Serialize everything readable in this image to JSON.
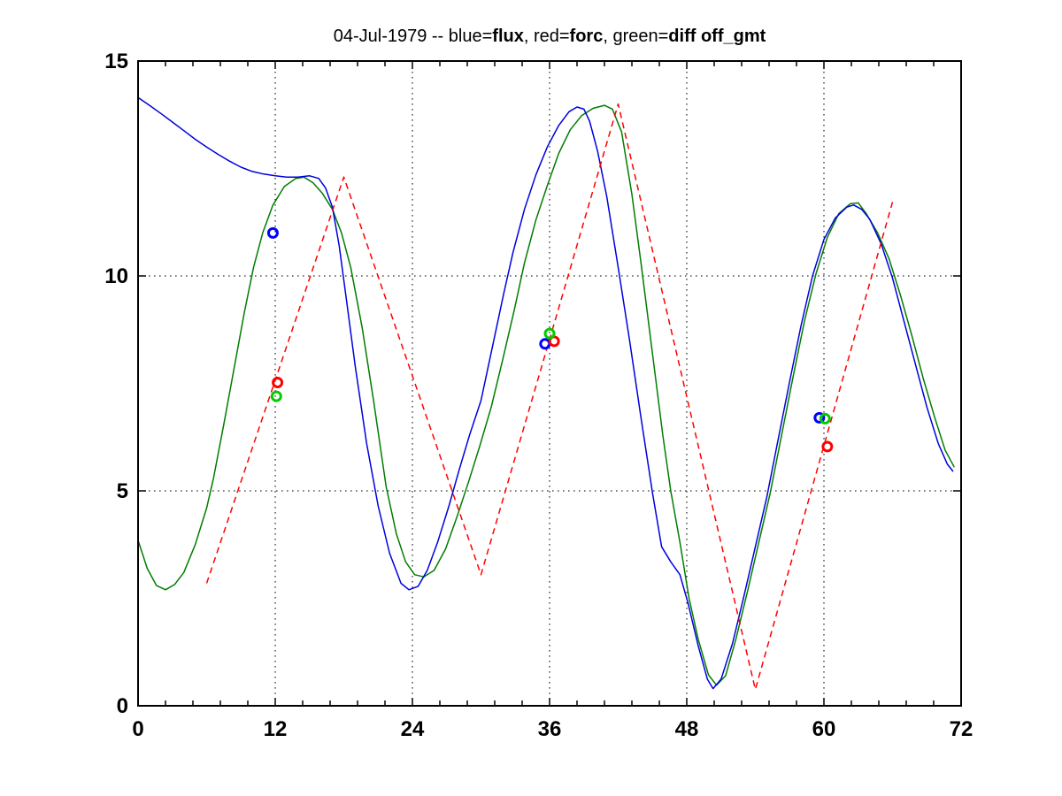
{
  "figure": {
    "background": "#ffffff"
  },
  "title": {
    "segments": [
      {
        "text": "04-Jul-1979 -- blue="
      },
      {
        "text": "flux"
      },
      {
        "text": ", red="
      },
      {
        "text": "forc"
      },
      {
        "text": ", green="
      },
      {
        "text": "diff off_gmt"
      }
    ]
  },
  "axes": {
    "xlim": [
      0,
      72
    ],
    "ylim": [
      0,
      15
    ],
    "xticks": [
      0,
      12,
      24,
      36,
      48,
      60,
      72
    ],
    "xticklabels": [
      "0",
      "12",
      "24",
      "36",
      "48",
      "60",
      "72"
    ],
    "yticks": [
      0,
      5,
      10,
      15
    ],
    "yticklabels": [
      "0",
      "5",
      "10",
      "15"
    ],
    "x_minor_step": 2.4,
    "grid_x": [
      12,
      24,
      36,
      48,
      60
    ],
    "grid_y": [
      5,
      10
    ],
    "grid_style": "dotted",
    "axis_color": "#000000"
  },
  "chart_data": {
    "type": "line",
    "title": "04-Jul-1979 -- blue=flux, red=forc, green=diff off_gmt",
    "xlabel": "",
    "ylabel": "",
    "xlim": [
      0,
      72
    ],
    "ylim": [
      0,
      15
    ],
    "grid": "on",
    "legend_position": "in-title",
    "series": [
      {
        "name": "diff",
        "color": "#007d00",
        "line": "solid",
        "points": [
          [
            0,
            3.85
          ],
          [
            0.8,
            3.2
          ],
          [
            1.6,
            2.8
          ],
          [
            2.4,
            2.7
          ],
          [
            3.2,
            2.82
          ],
          [
            4,
            3.1
          ],
          [
            5,
            3.75
          ],
          [
            6,
            4.6
          ],
          [
            6.6,
            5.3
          ],
          [
            7.5,
            6.55
          ],
          [
            8.4,
            7.85
          ],
          [
            9.3,
            9.15
          ],
          [
            10.1,
            10.2
          ],
          [
            10.9,
            11.0
          ],
          [
            11.8,
            11.65
          ],
          [
            12.8,
            12.08
          ],
          [
            13.8,
            12.27
          ],
          [
            14.5,
            12.3
          ],
          [
            15.3,
            12.17
          ],
          [
            16.1,
            11.93
          ],
          [
            17,
            11.55
          ],
          [
            17.8,
            11.0
          ],
          [
            18.6,
            10.2
          ],
          [
            19.6,
            8.8
          ],
          [
            20.6,
            7.1
          ],
          [
            21.7,
            5.1
          ],
          [
            22.6,
            4.0
          ],
          [
            23.4,
            3.35
          ],
          [
            24.2,
            3.05
          ],
          [
            25,
            3.0
          ],
          [
            25.9,
            3.15
          ],
          [
            26.9,
            3.65
          ],
          [
            27.9,
            4.4
          ],
          [
            28.9,
            5.2
          ],
          [
            29.9,
            6.05
          ],
          [
            30.9,
            6.95
          ],
          [
            31.9,
            8.05
          ],
          [
            32.9,
            9.2
          ],
          [
            33.8,
            10.3
          ],
          [
            34.8,
            11.3
          ],
          [
            35.8,
            12.1
          ],
          [
            36.8,
            12.85
          ],
          [
            37.8,
            13.4
          ],
          [
            38.8,
            13.73
          ],
          [
            39.8,
            13.9
          ],
          [
            40.8,
            13.97
          ],
          [
            41.5,
            13.88
          ],
          [
            42.3,
            13.35
          ],
          [
            43.2,
            11.9
          ],
          [
            44,
            10.3
          ],
          [
            44.9,
            8.4
          ],
          [
            45.9,
            6.3
          ],
          [
            46.6,
            5.0
          ],
          [
            47.4,
            3.8
          ],
          [
            48.2,
            2.5
          ],
          [
            49,
            1.55
          ],
          [
            49.9,
            0.72
          ],
          [
            50.6,
            0.48
          ],
          [
            51.4,
            0.7
          ],
          [
            52.3,
            1.55
          ],
          [
            53.3,
            2.65
          ],
          [
            54.3,
            3.8
          ],
          [
            55.3,
            4.95
          ],
          [
            56.3,
            6.3
          ],
          [
            57.3,
            7.65
          ],
          [
            58.3,
            8.95
          ],
          [
            59.3,
            10.05
          ],
          [
            60.3,
            10.9
          ],
          [
            61.3,
            11.45
          ],
          [
            62.3,
            11.68
          ],
          [
            63,
            11.7
          ],
          [
            63.7,
            11.45
          ],
          [
            64.7,
            11.0
          ],
          [
            65.7,
            10.4
          ],
          [
            66.7,
            9.55
          ],
          [
            67.7,
            8.6
          ],
          [
            68.7,
            7.6
          ],
          [
            69.7,
            6.7
          ],
          [
            70.6,
            5.95
          ],
          [
            71.4,
            5.55
          ]
        ]
      },
      {
        "name": "flux",
        "color": "#0000dd",
        "line": "solid",
        "points": [
          [
            0,
            14.15
          ],
          [
            1,
            13.97
          ],
          [
            2,
            13.78
          ],
          [
            3,
            13.58
          ],
          [
            4,
            13.38
          ],
          [
            5,
            13.18
          ],
          [
            6,
            13.0
          ],
          [
            7,
            12.83
          ],
          [
            8,
            12.67
          ],
          [
            9,
            12.53
          ],
          [
            10,
            12.43
          ],
          [
            11,
            12.37
          ],
          [
            12,
            12.33
          ],
          [
            13,
            12.3
          ],
          [
            14,
            12.3
          ],
          [
            15,
            12.33
          ],
          [
            15.8,
            12.27
          ],
          [
            16.4,
            12.05
          ],
          [
            17,
            11.6
          ],
          [
            17.6,
            10.7
          ],
          [
            18.2,
            9.5
          ],
          [
            19,
            7.9
          ],
          [
            20,
            6.1
          ],
          [
            21,
            4.65
          ],
          [
            22,
            3.55
          ],
          [
            23,
            2.85
          ],
          [
            23.7,
            2.7
          ],
          [
            24.5,
            2.78
          ],
          [
            25.3,
            3.15
          ],
          [
            26.2,
            3.8
          ],
          [
            27.2,
            4.65
          ],
          [
            28.1,
            5.5
          ],
          [
            29,
            6.3
          ],
          [
            30,
            7.1
          ],
          [
            31,
            8.35
          ],
          [
            32,
            9.6
          ],
          [
            32.8,
            10.55
          ],
          [
            33.8,
            11.55
          ],
          [
            34.8,
            12.35
          ],
          [
            35.8,
            13.0
          ],
          [
            36.8,
            13.5
          ],
          [
            37.7,
            13.82
          ],
          [
            38.4,
            13.93
          ],
          [
            39,
            13.88
          ],
          [
            39.5,
            13.6
          ],
          [
            40.2,
            12.9
          ],
          [
            41,
            11.85
          ],
          [
            42,
            10.2
          ],
          [
            43,
            8.5
          ],
          [
            44,
            6.7
          ],
          [
            45,
            4.95
          ],
          [
            45.8,
            3.7
          ],
          [
            46.6,
            3.35
          ],
          [
            47.4,
            3.05
          ],
          [
            48.1,
            2.4
          ],
          [
            49,
            1.4
          ],
          [
            49.8,
            0.62
          ],
          [
            50.3,
            0.4
          ],
          [
            51,
            0.62
          ],
          [
            52,
            1.45
          ],
          [
            53,
            2.55
          ],
          [
            54,
            3.7
          ],
          [
            55,
            4.85
          ],
          [
            56,
            6.2
          ],
          [
            57,
            7.55
          ],
          [
            58,
            8.85
          ],
          [
            59,
            10.0
          ],
          [
            60,
            10.85
          ],
          [
            61,
            11.35
          ],
          [
            62,
            11.6
          ],
          [
            62.6,
            11.65
          ],
          [
            63.3,
            11.55
          ],
          [
            64,
            11.32
          ],
          [
            65,
            10.75
          ],
          [
            66,
            9.95
          ],
          [
            67,
            8.95
          ],
          [
            68,
            7.95
          ],
          [
            69,
            6.95
          ],
          [
            70,
            6.1
          ],
          [
            70.8,
            5.62
          ],
          [
            71.3,
            5.45
          ]
        ]
      },
      {
        "name": "forc",
        "color": "#ff0000",
        "line": "dashed",
        "points": [
          [
            6,
            2.85
          ],
          [
            18,
            12.3
          ],
          [
            30,
            3.05
          ],
          [
            42,
            14.0
          ],
          [
            54,
            0.38
          ],
          [
            66,
            11.72
          ]
        ]
      }
    ],
    "markers": [
      {
        "series": "flux",
        "color": "#0000ff",
        "x": 11.8,
        "y": 11.0
      },
      {
        "series": "forc",
        "color": "#ff0000",
        "x": 12.2,
        "y": 7.52
      },
      {
        "series": "diff",
        "color": "#00cc00",
        "x": 12.1,
        "y": 7.2
      },
      {
        "series": "flux",
        "color": "#0000ff",
        "x": 35.6,
        "y": 8.42
      },
      {
        "series": "forc",
        "color": "#ff0000",
        "x": 36.4,
        "y": 8.48
      },
      {
        "series": "diff",
        "color": "#00cc00",
        "x": 36.0,
        "y": 8.66
      },
      {
        "series": "flux",
        "color": "#0000ff",
        "x": 59.6,
        "y": 6.7
      },
      {
        "series": "forc",
        "color": "#ff0000",
        "x": 60.3,
        "y": 6.03
      },
      {
        "series": "diff",
        "color": "#00cc00",
        "x": 60.1,
        "y": 6.68
      }
    ]
  }
}
